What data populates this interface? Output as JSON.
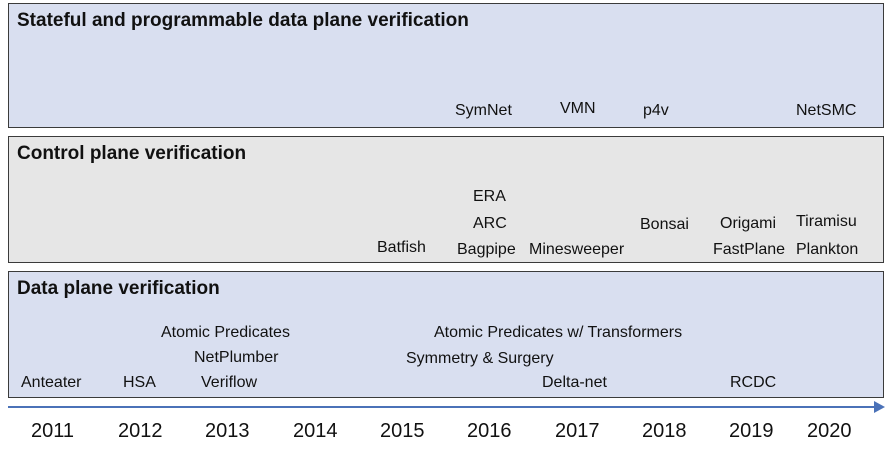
{
  "colors": {
    "stateful_band": "#d9dff0",
    "control_band": "#e6e6e6",
    "data_band": "#d9dff0",
    "axis": "#4b72b8"
  },
  "bands": {
    "stateful": {
      "title": "Stateful and programmable data plane verification",
      "items": [
        "SymNet",
        "VMN",
        "p4v",
        "NetSMC"
      ]
    },
    "control": {
      "title": "Control plane verification",
      "items": [
        "Batfish",
        "ERA",
        "ARC",
        "Bagpipe",
        "Minesweeper",
        "Bonsai",
        "Origami",
        "FastPlane",
        "Tiramisu",
        "Plankton"
      ]
    },
    "data": {
      "title": "Data plane verification",
      "items": [
        "Anteater",
        "HSA",
        "Atomic Predicates",
        "NetPlumber",
        "Veriflow",
        "Symmetry & Surgery",
        "Atomic Predicates w/ Transformers",
        "Delta-net",
        "RCDC"
      ]
    }
  },
  "timeline": {
    "years": [
      "2011",
      "2012",
      "2013",
      "2014",
      "2015",
      "2016",
      "2017",
      "2018",
      "2019",
      "2020"
    ]
  }
}
